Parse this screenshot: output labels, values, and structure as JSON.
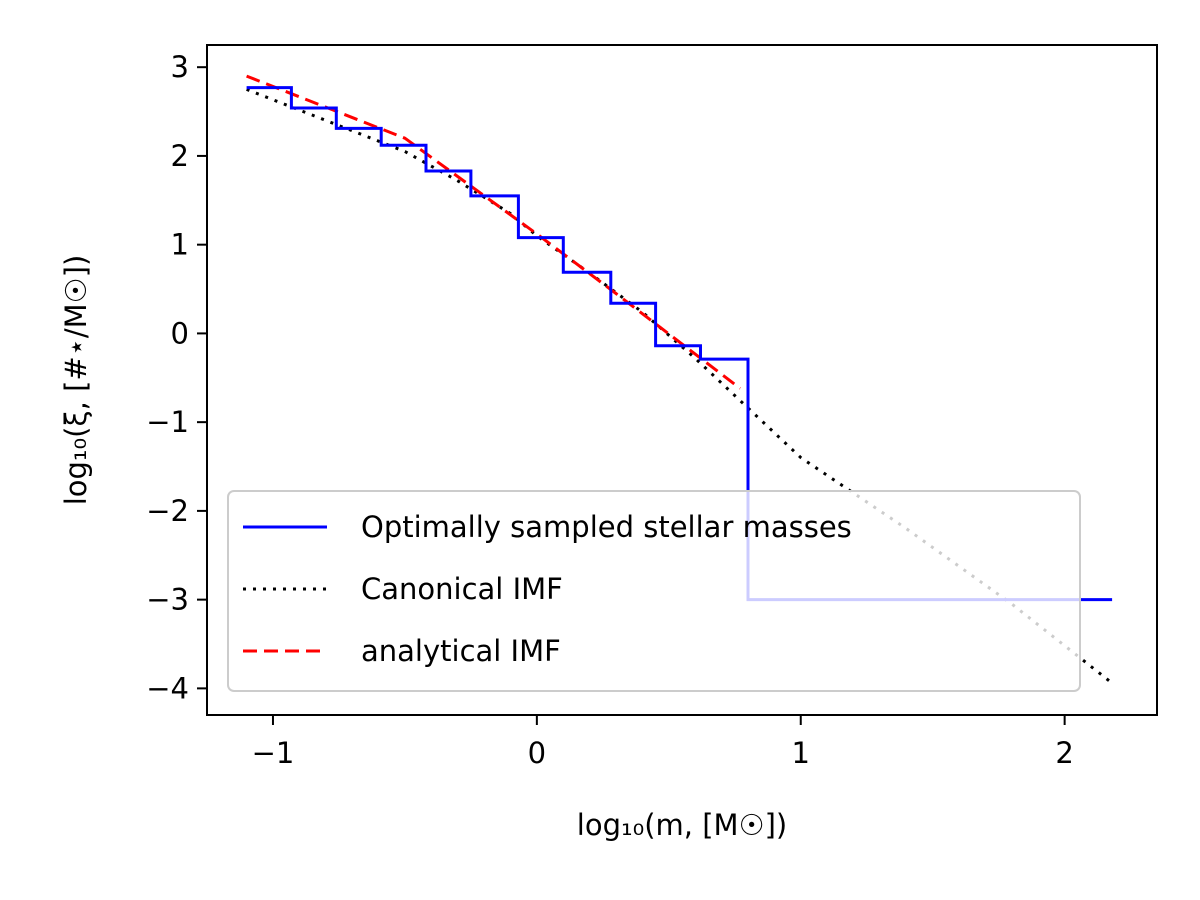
{
  "chart_data": {
    "type": "line",
    "xlabel": "log₁₀(m, [M☉])",
    "ylabel": "log₁₀(ξ, [#⋆/M☉])",
    "xlim": [
      -1.25,
      2.35
    ],
    "ylim": [
      -4.3,
      3.25
    ],
    "xticks": [
      -1,
      0,
      1,
      2
    ],
    "xtick_labels": [
      "−1",
      "0",
      "1",
      "2"
    ],
    "yticks": [
      3,
      2,
      1,
      0,
      -1,
      -2,
      -3,
      -4
    ],
    "ytick_labels": [
      "3",
      "2",
      "1",
      "0",
      "−1",
      "−2",
      "−3",
      "−4"
    ],
    "grid": false,
    "legend_position": "bottom-left",
    "series": [
      {
        "name": "Optimally sampled stellar masses",
        "color": "#0000ff",
        "style": "solid",
        "step": true,
        "x": [
          -1.1,
          -0.93,
          -0.93,
          -0.76,
          -0.76,
          -0.59,
          -0.59,
          -0.42,
          -0.42,
          -0.25,
          -0.25,
          -0.07,
          -0.07,
          0.1,
          0.1,
          0.28,
          0.28,
          0.45,
          0.45,
          0.62,
          0.62,
          0.8,
          0.8,
          2.18
        ],
        "y": [
          2.77,
          2.77,
          2.54,
          2.54,
          2.31,
          2.31,
          2.12,
          2.12,
          1.83,
          1.83,
          1.55,
          1.55,
          1.08,
          1.08,
          0.69,
          0.69,
          0.34,
          0.34,
          -0.14,
          -0.14,
          -0.29,
          -0.29,
          -3.0,
          -3.0
        ]
      },
      {
        "name": "Canonical IMF",
        "color": "#000000",
        "style": "dotted",
        "x": [
          -1.1,
          -0.8,
          -0.5,
          -0.3,
          -0.1,
          0.0,
          0.2,
          0.4,
          0.6,
          0.8,
          1.0,
          1.4,
          1.8,
          2.18
        ],
        "y": [
          2.75,
          2.4,
          2.05,
          1.72,
          1.35,
          1.1,
          0.68,
          0.24,
          -0.28,
          -0.84,
          -1.4,
          -2.2,
          -3.05,
          -3.94
        ]
      },
      {
        "name": "analytical IMF",
        "color": "#ff0000",
        "style": "dashed",
        "x": [
          -1.1,
          -0.5,
          0.0,
          0.3,
          0.77
        ],
        "y": [
          2.9,
          2.2,
          1.12,
          0.45,
          -0.62
        ]
      }
    ]
  }
}
